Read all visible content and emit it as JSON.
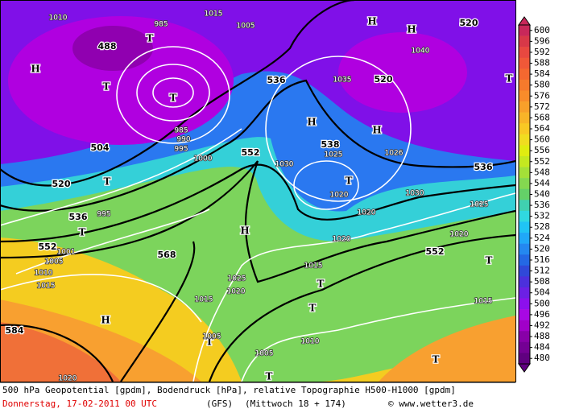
{
  "map": {
    "labels": [
      "1010",
      "985",
      "1015",
      "1005",
      "488",
      "T",
      "H",
      "536",
      "1035",
      "520",
      "1040",
      "H",
      "H",
      "520",
      "T",
      "T",
      "T",
      "985",
      "990",
      "995",
      "504",
      "552",
      "1000",
      "H",
      "H",
      "538",
      "1025",
      "1026",
      "1030",
      "536",
      "T",
      "520",
      "T",
      "1020",
      "1030",
      "1025",
      "536",
      "995",
      "1020",
      "T",
      "1020",
      "H",
      "552",
      "1001",
      "568",
      "1020",
      "552",
      "T",
      "1005",
      "1015",
      "1010",
      "1025",
      "1015",
      "1020",
      "T",
      "1015",
      "1015",
      "T",
      "H",
      "584",
      "T",
      "1005",
      "1010",
      "1005",
      "T",
      "T",
      "1020"
    ],
    "scale": {
      "values": [
        600,
        596,
        592,
        588,
        584,
        580,
        576,
        572,
        568,
        564,
        560,
        556,
        552,
        548,
        544,
        540,
        536,
        532,
        528,
        524,
        520,
        516,
        512,
        508,
        504,
        500,
        496,
        492,
        488,
        484,
        480
      ],
      "colors": [
        "#c8285a",
        "#d83848",
        "#e84840",
        "#f05838",
        "#f46830",
        "#f67a2c",
        "#f88c2a",
        "#f8a02a",
        "#f8b428",
        "#f8c824",
        "#f0dc20",
        "#e0ec10",
        "#c4e820",
        "#a4e038",
        "#84d850",
        "#64d068",
        "#40d0b0",
        "#30d8e0",
        "#20c4f4",
        "#20a8f8",
        "#2488f0",
        "#2468e4",
        "#3048d8",
        "#4c30dc",
        "#6c20e4",
        "#8c10ec",
        "#a808e4",
        "#a000c8",
        "#8800a8",
        "#740094",
        "#600080"
      ]
    },
    "footer": {
      "caption": "500 hPa Geopotential [gpdm], Bodendruck [hPa], relative Topographie H500-H1000 [gpdm]",
      "date": "Donnerstag, 17-02-2011  00 UTC",
      "model": "(GFS)",
      "run": "(Mittwoch 18 + 174)",
      "copyright": "© www.wetter3.de"
    }
  }
}
